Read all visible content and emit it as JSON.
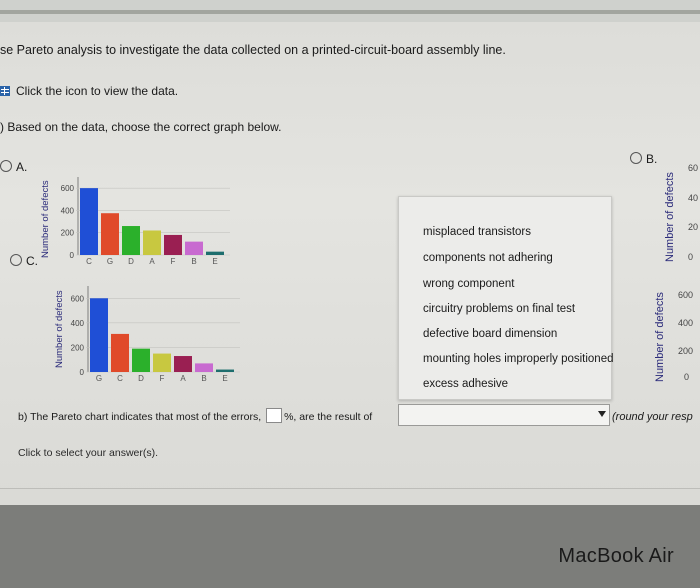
{
  "header": {
    "title": "se Pareto analysis to investigate the data collected on a printed-circuit-board assembly line.",
    "view_data": "Click the icon to view the data.",
    "part_a": ") Based on the data, choose the correct graph below."
  },
  "options": {
    "a": "A.",
    "b": "B.",
    "c": "C."
  },
  "charts": {
    "ylabel": "Number of defects",
    "ticks_a": [
      "600",
      "400",
      "200",
      "0"
    ],
    "ticks_b": [
      "60",
      "40",
      "20",
      "0"
    ],
    "ticks_c": [
      "600",
      "400",
      "200",
      "0"
    ],
    "ticks_d": [
      "600",
      "400",
      "200",
      "0"
    ]
  },
  "chart_data": [
    {
      "type": "bar",
      "label": "A",
      "categories": [
        "C",
        "G",
        "D",
        "A",
        "F",
        "B",
        "E"
      ],
      "values": [
        600,
        375,
        260,
        220,
        180,
        120,
        30
      ],
      "ylabel": "Number of defects",
      "ylim": [
        0,
        700
      ],
      "colors": [
        "#1f4fd6",
        "#e04a2a",
        "#2bb02b",
        "#c8c840",
        "#9a1f52",
        "#c86ad0",
        "#1e6e6e"
      ]
    },
    {
      "type": "bar",
      "label": "C",
      "categories": [
        "G",
        "C",
        "D",
        "F",
        "A",
        "B",
        "E"
      ],
      "values": [
        600,
        310,
        190,
        150,
        130,
        70,
        20
      ],
      "ylabel": "Number of defects",
      "ylim": [
        0,
        700
      ],
      "colors": [
        "#1f4fd6",
        "#e04a2a",
        "#2bb02b",
        "#c8c840",
        "#9a1f52",
        "#c86ad0",
        "#1e6e6e"
      ]
    }
  ],
  "dropdown": {
    "items": [
      "misplaced transistors",
      "components not adhering",
      "wrong component",
      "circuitry problems on final test",
      "defective board dimension",
      "mounting holes improperly positioned",
      "excess adhesive"
    ]
  },
  "part_b": {
    "before": "b) The Pareto chart indicates that most of the errors,",
    "after": "%, are the result of",
    "round": "(round your resp"
  },
  "footer": {
    "click_select": "Click to select your answer(s).",
    "brand": "MacBook Air"
  }
}
